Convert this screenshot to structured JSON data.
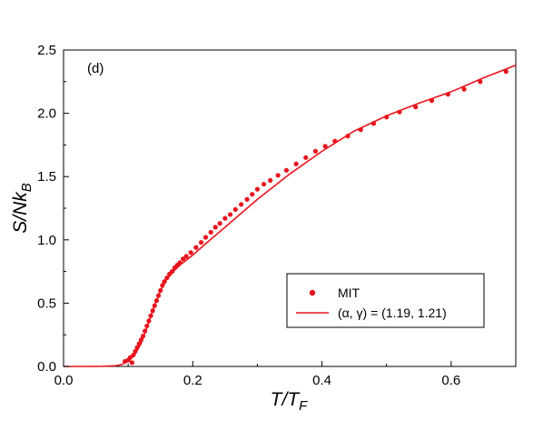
{
  "chart_data": {
    "type": "scatter",
    "panel_label": "(d)",
    "xlabel": {
      "main": "T/T",
      "sub": "F"
    },
    "ylabel": {
      "main": "S/Nk",
      "sub": "B"
    },
    "xlim": [
      0,
      0.7
    ],
    "ylim": [
      0,
      2.5
    ],
    "x_ticks": [
      0.0,
      0.2,
      0.4,
      0.6
    ],
    "x_tick_labels": [
      "0.0",
      "0.2",
      "0.4",
      "0.6"
    ],
    "y_ticks": [
      0.0,
      0.5,
      1.0,
      1.5,
      2.0,
      2.5
    ],
    "y_tick_labels": [
      "0.0",
      "0.5",
      "1.0",
      "1.5",
      "2.0",
      "2.5"
    ],
    "grid": false,
    "legend": {
      "placement": "bottom-right"
    },
    "series": [
      {
        "name": "MIT",
        "kind": "points",
        "color": "#e8141c",
        "points": [
          [
            0.095,
            0.04
          ],
          [
            0.1,
            0.05
          ],
          [
            0.103,
            0.07
          ],
          [
            0.106,
            0.03
          ],
          [
            0.108,
            0.09
          ],
          [
            0.111,
            0.12
          ],
          [
            0.114,
            0.15
          ],
          [
            0.117,
            0.18
          ],
          [
            0.12,
            0.21
          ],
          [
            0.123,
            0.24
          ],
          [
            0.126,
            0.28
          ],
          [
            0.129,
            0.32
          ],
          [
            0.132,
            0.36
          ],
          [
            0.135,
            0.4
          ],
          [
            0.138,
            0.44
          ],
          [
            0.141,
            0.48
          ],
          [
            0.144,
            0.52
          ],
          [
            0.147,
            0.56
          ],
          [
            0.15,
            0.6
          ],
          [
            0.153,
            0.64
          ],
          [
            0.156,
            0.67
          ],
          [
            0.16,
            0.7
          ],
          [
            0.164,
            0.73
          ],
          [
            0.168,
            0.75
          ],
          [
            0.172,
            0.78
          ],
          [
            0.176,
            0.8
          ],
          [
            0.18,
            0.82
          ],
          [
            0.185,
            0.85
          ],
          [
            0.19,
            0.87
          ],
          [
            0.197,
            0.9
          ],
          [
            0.205,
            0.94
          ],
          [
            0.213,
            0.98
          ],
          [
            0.22,
            1.02
          ],
          [
            0.228,
            1.06
          ],
          [
            0.235,
            1.1
          ],
          [
            0.242,
            1.13
          ],
          [
            0.25,
            1.17
          ],
          [
            0.258,
            1.2
          ],
          [
            0.266,
            1.24
          ],
          [
            0.275,
            1.28
          ],
          [
            0.284,
            1.32
          ],
          [
            0.292,
            1.36
          ],
          [
            0.3,
            1.4
          ],
          [
            0.31,
            1.44
          ],
          [
            0.32,
            1.47
          ],
          [
            0.332,
            1.51
          ],
          [
            0.345,
            1.55
          ],
          [
            0.36,
            1.6
          ],
          [
            0.375,
            1.65
          ],
          [
            0.39,
            1.7
          ],
          [
            0.405,
            1.74
          ],
          [
            0.42,
            1.78
          ],
          [
            0.44,
            1.82
          ],
          [
            0.46,
            1.87
          ],
          [
            0.48,
            1.92
          ],
          [
            0.5,
            1.97
          ],
          [
            0.52,
            2.01
          ],
          [
            0.545,
            2.05
          ],
          [
            0.57,
            2.1
          ],
          [
            0.595,
            2.15
          ],
          [
            0.62,
            2.19
          ],
          [
            0.645,
            2.25
          ],
          [
            0.685,
            2.33
          ]
        ]
      },
      {
        "name": "(α, γ) = (1.19, 1.21)",
        "kind": "line",
        "color": "#e8141c",
        "points": [
          [
            0.0,
            0.0
          ],
          [
            0.04,
            0.0
          ],
          [
            0.06,
            0.001
          ],
          [
            0.08,
            0.005
          ],
          [
            0.09,
            0.015
          ],
          [
            0.1,
            0.04
          ],
          [
            0.11,
            0.09
          ],
          [
            0.12,
            0.18
          ],
          [
            0.13,
            0.32
          ],
          [
            0.14,
            0.47
          ],
          [
            0.15,
            0.6
          ],
          [
            0.16,
            0.69
          ],
          [
            0.17,
            0.75
          ],
          [
            0.18,
            0.8
          ],
          [
            0.2,
            0.88
          ],
          [
            0.22,
            0.97
          ],
          [
            0.25,
            1.1
          ],
          [
            0.3,
            1.32
          ],
          [
            0.35,
            1.52
          ],
          [
            0.4,
            1.7
          ],
          [
            0.45,
            1.86
          ],
          [
            0.5,
            1.98
          ],
          [
            0.55,
            2.08
          ],
          [
            0.6,
            2.17
          ],
          [
            0.65,
            2.28
          ],
          [
            0.7,
            2.38
          ]
        ]
      }
    ]
  }
}
